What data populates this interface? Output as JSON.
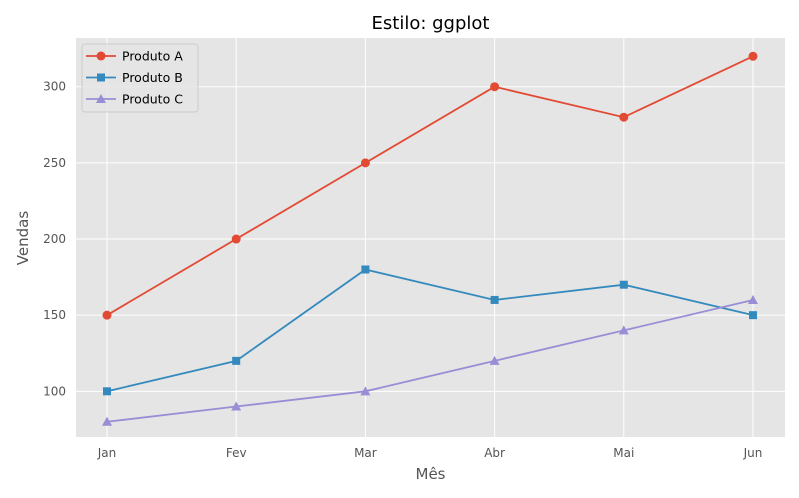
{
  "chart_data": {
    "type": "line",
    "title": "Estilo: ggplot",
    "xlabel": "Mês",
    "ylabel": "Vendas",
    "categories": [
      "Jan",
      "Fev",
      "Mar",
      "Abr",
      "Mai",
      "Jun"
    ],
    "ylim": [
      70,
      332
    ],
    "yticks": [
      100,
      150,
      200,
      250,
      300
    ],
    "grid": true,
    "legend_position": "top-left",
    "background_color": "#e5e5e5",
    "grid_color": "#ffffff",
    "series": [
      {
        "name": "Produto A",
        "values": [
          150,
          200,
          250,
          300,
          280,
          320
        ],
        "color": "#e24a33",
        "marker": "circle"
      },
      {
        "name": "Produto B",
        "values": [
          100,
          120,
          180,
          160,
          170,
          150
        ],
        "color": "#348abd",
        "marker": "square"
      },
      {
        "name": "Produto C",
        "values": [
          80,
          90,
          100,
          120,
          140,
          160
        ],
        "color": "#988ed5",
        "marker": "triangle"
      }
    ]
  }
}
